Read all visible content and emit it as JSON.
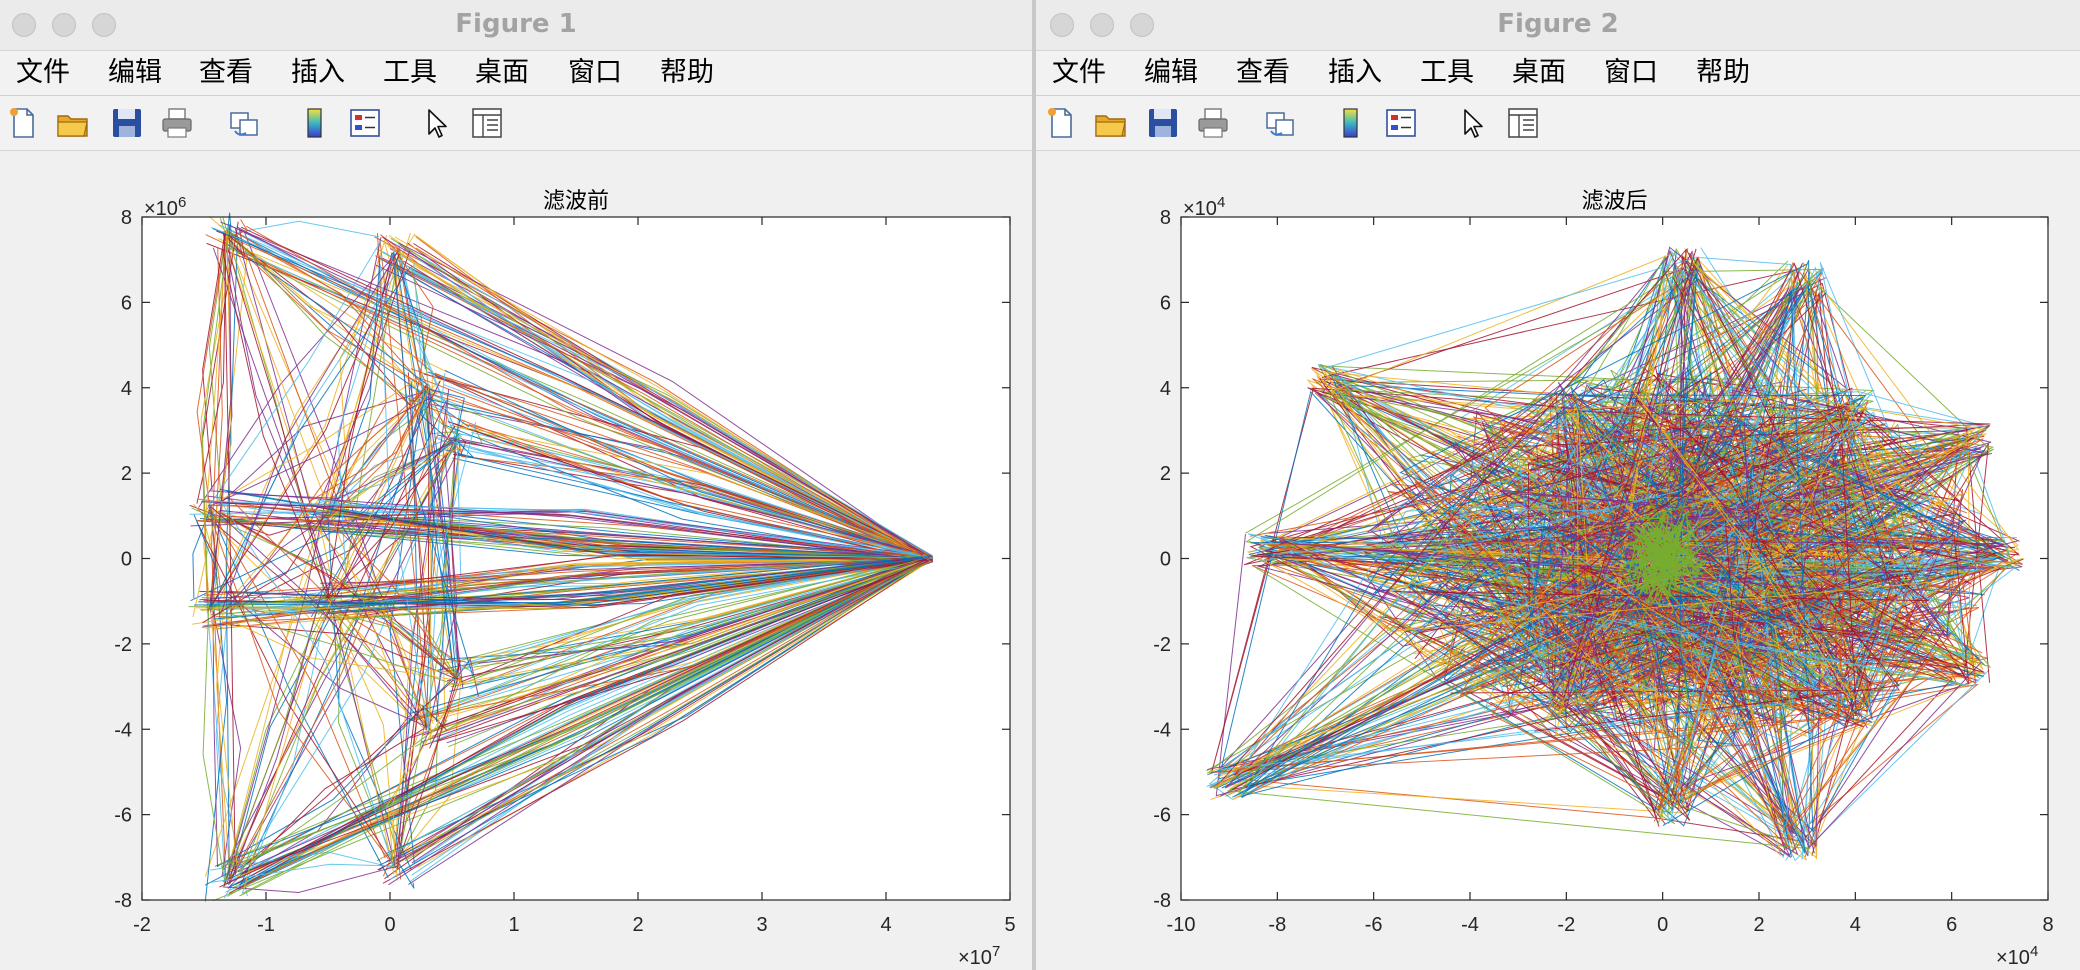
{
  "menu_labels": [
    "文件",
    "编辑",
    "查看",
    "插入",
    "工具",
    "桌面",
    "窗口",
    "帮助"
  ],
  "toolbar_icons": [
    "new-figure-icon",
    "open-file-icon",
    "save-icon",
    "print-icon",
    "link-plot-icon",
    "colorbar-icon",
    "legend-icon",
    "pointer-icon",
    "property-inspector-icon"
  ],
  "colors": {
    "series_palette": [
      "#0072BD",
      "#D95319",
      "#EDB120",
      "#7E2F8E",
      "#77AC30",
      "#4DBEEE",
      "#A2142F"
    ],
    "titlebar": "#ebebeb",
    "axes_bg": "#ffffff"
  },
  "figure1": {
    "window_title": "Figure 1",
    "chart_data": {
      "type": "line",
      "title": "滤波前",
      "xlabel": "",
      "ylabel": "",
      "xlim": [
        -2,
        5
      ],
      "ylim": [
        -8,
        8
      ],
      "x_exponent": "×10",
      "x_exponent_power": "7",
      "y_exponent": "×10",
      "y_exponent_power": "6",
      "xticks": [
        "-2",
        "-1",
        "0",
        "1",
        "2",
        "3",
        "4",
        "5"
      ],
      "yticks": [
        "-8",
        "-6",
        "-4",
        "-2",
        "0",
        "2",
        "4",
        "6",
        "8"
      ],
      "grid": false,
      "legend": "none",
      "vertices": [
        {
          "x": 4.35,
          "y": 0
        },
        {
          "x": -1.32,
          "y": 7.6
        },
        {
          "x": -1.32,
          "y": -7.6
        },
        {
          "x": 0.05,
          "y": 7.2
        },
        {
          "x": 0.05,
          "y": -7.2
        },
        {
          "x": 0.3,
          "y": 4.0
        },
        {
          "x": 0.3,
          "y": -4.0
        },
        {
          "x": -1.45,
          "y": 1.2
        },
        {
          "x": -1.45,
          "y": -1.2
        },
        {
          "x": 0.55,
          "y": 2.8
        },
        {
          "x": 0.55,
          "y": -2.8
        },
        {
          "x": -0.5,
          "y": 1.0
        },
        {
          "x": -0.5,
          "y": -1.0
        }
      ]
    }
  },
  "figure2": {
    "window_title": "Figure 2",
    "chart_data": {
      "type": "line",
      "title": "滤波后",
      "xlabel": "",
      "ylabel": "",
      "xlim": [
        -10,
        8
      ],
      "ylim": [
        -8,
        8
      ],
      "x_exponent": "×10",
      "x_exponent_power": "4",
      "y_exponent": "×10",
      "y_exponent_power": "4",
      "xticks": [
        "-10",
        "-8",
        "-6",
        "-4",
        "-2",
        "0",
        "2",
        "4",
        "6",
        "8"
      ],
      "yticks": [
        "-8",
        "-6",
        "-4",
        "-2",
        "0",
        "2",
        "4",
        "6",
        "8"
      ],
      "grid": false,
      "legend": "none",
      "vertices": [
        {
          "x": 0.4,
          "y": 6.9
        },
        {
          "x": -7.0,
          "y": 4.2
        },
        {
          "x": -9.1,
          "y": -5.3
        },
        {
          "x": 0.2,
          "y": -5.9
        },
        {
          "x": -8.3,
          "y": 0.2
        },
        {
          "x": 7.1,
          "y": 0.1
        },
        {
          "x": 2.8,
          "y": -6.7
        },
        {
          "x": 3.0,
          "y": 6.6
        },
        {
          "x": 6.5,
          "y": 2.8
        },
        {
          "x": 6.4,
          "y": -2.6
        },
        {
          "x": -2.0,
          "y": 3.5
        },
        {
          "x": -2.0,
          "y": -3.2
        },
        {
          "x": 4.0,
          "y": 3.6
        },
        {
          "x": 4.0,
          "y": -3.6
        }
      ]
    }
  }
}
